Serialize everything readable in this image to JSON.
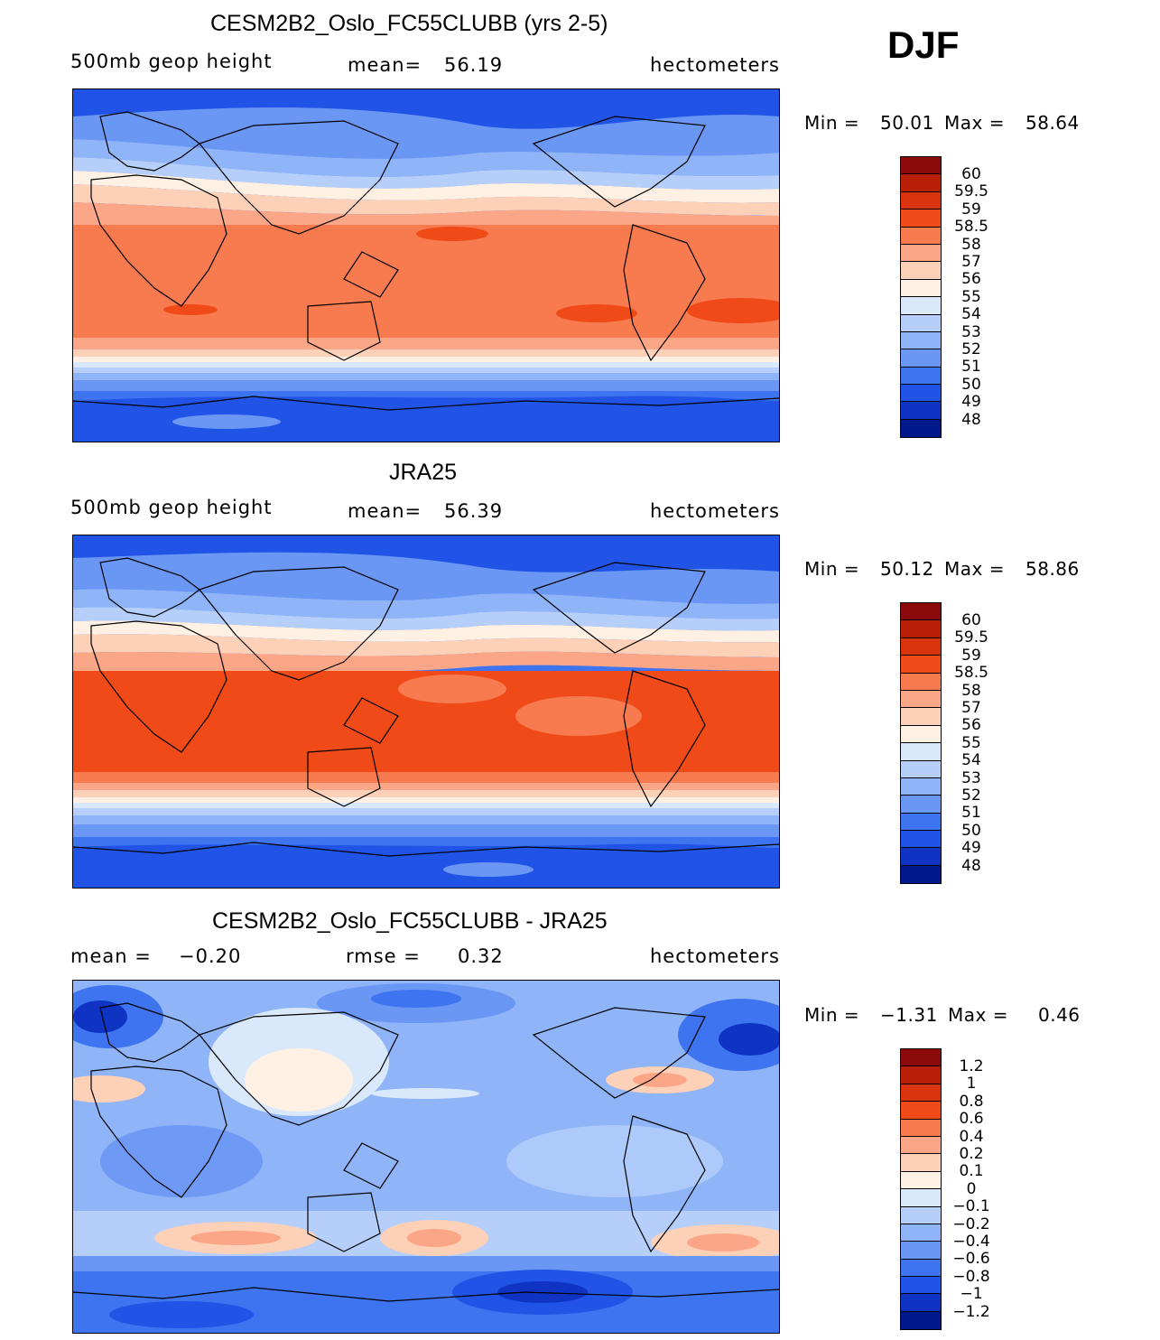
{
  "season": "DJF",
  "panels": [
    {
      "title": "CESM2B2_Oslo_FC55CLUBB (yrs 2-5)",
      "left_label": "500mb geop height",
      "center_label": "mean=",
      "center_value": "56.19",
      "units": "hectometers",
      "min_label": "Min =",
      "min_value": "50.01",
      "max_label": "Max =",
      "max_value": "58.64",
      "colorbar": {
        "labels": [
          "60",
          "59.5",
          "59",
          "58.5",
          "58",
          "57",
          "56",
          "55",
          "54",
          "53",
          "52",
          "51",
          "50",
          "49",
          "48"
        ],
        "colors": [
          "#8b0a0a",
          "#b81f06",
          "#d9340e",
          "#ef4a18",
          "#f77b4f",
          "#fba686",
          "#fdd0b8",
          "#fff0e4",
          "#d9e9fb",
          "#b5cffa",
          "#8fb4f8",
          "#6a96f4",
          "#3f74f0",
          "#2053e6",
          "#0f34c4",
          "#001a8c"
        ]
      }
    },
    {
      "title": "JRA25",
      "left_label": "500mb geop height",
      "center_label": "mean=",
      "center_value": "56.39",
      "units": "hectometers",
      "min_label": "Min =",
      "min_value": "50.12",
      "max_label": "Max =",
      "max_value": "58.86",
      "colorbar": {
        "labels": [
          "60",
          "59.5",
          "59",
          "58.5",
          "58",
          "57",
          "56",
          "55",
          "54",
          "53",
          "52",
          "51",
          "50",
          "49",
          "48"
        ],
        "colors": [
          "#8b0a0a",
          "#b81f06",
          "#d9340e",
          "#ef4a18",
          "#f77b4f",
          "#fba686",
          "#fdd0b8",
          "#fff0e4",
          "#d9e9fb",
          "#b5cffa",
          "#8fb4f8",
          "#6a96f4",
          "#3f74f0",
          "#2053e6",
          "#0f34c4",
          "#001a8c"
        ]
      }
    },
    {
      "title": "CESM2B2_Oslo_FC55CLUBB - JRA25",
      "left_label": "mean =",
      "left_value": "−0.20",
      "center_label": "rmse =",
      "center_value": "0.32",
      "units": "hectometers",
      "min_label": "Min =",
      "min_value": "−1.31",
      "max_label": "Max =",
      "max_value": "0.46",
      "colorbar": {
        "labels": [
          "1.2",
          "1",
          "0.8",
          "0.6",
          "0.4",
          "0.2",
          "0.1",
          "0",
          "−0.1",
          "−0.2",
          "−0.4",
          "−0.6",
          "−0.8",
          "−1",
          "−1.2"
        ],
        "colors": [
          "#8b0a0a",
          "#b81f06",
          "#d9340e",
          "#ef4a18",
          "#f77b4f",
          "#fba686",
          "#fdd0b8",
          "#fff0e4",
          "#d9e9fb",
          "#b5cffa",
          "#8fb4f8",
          "#6a96f4",
          "#3f74f0",
          "#2053e6",
          "#0f34c4",
          "#001a8c"
        ]
      }
    }
  ]
}
